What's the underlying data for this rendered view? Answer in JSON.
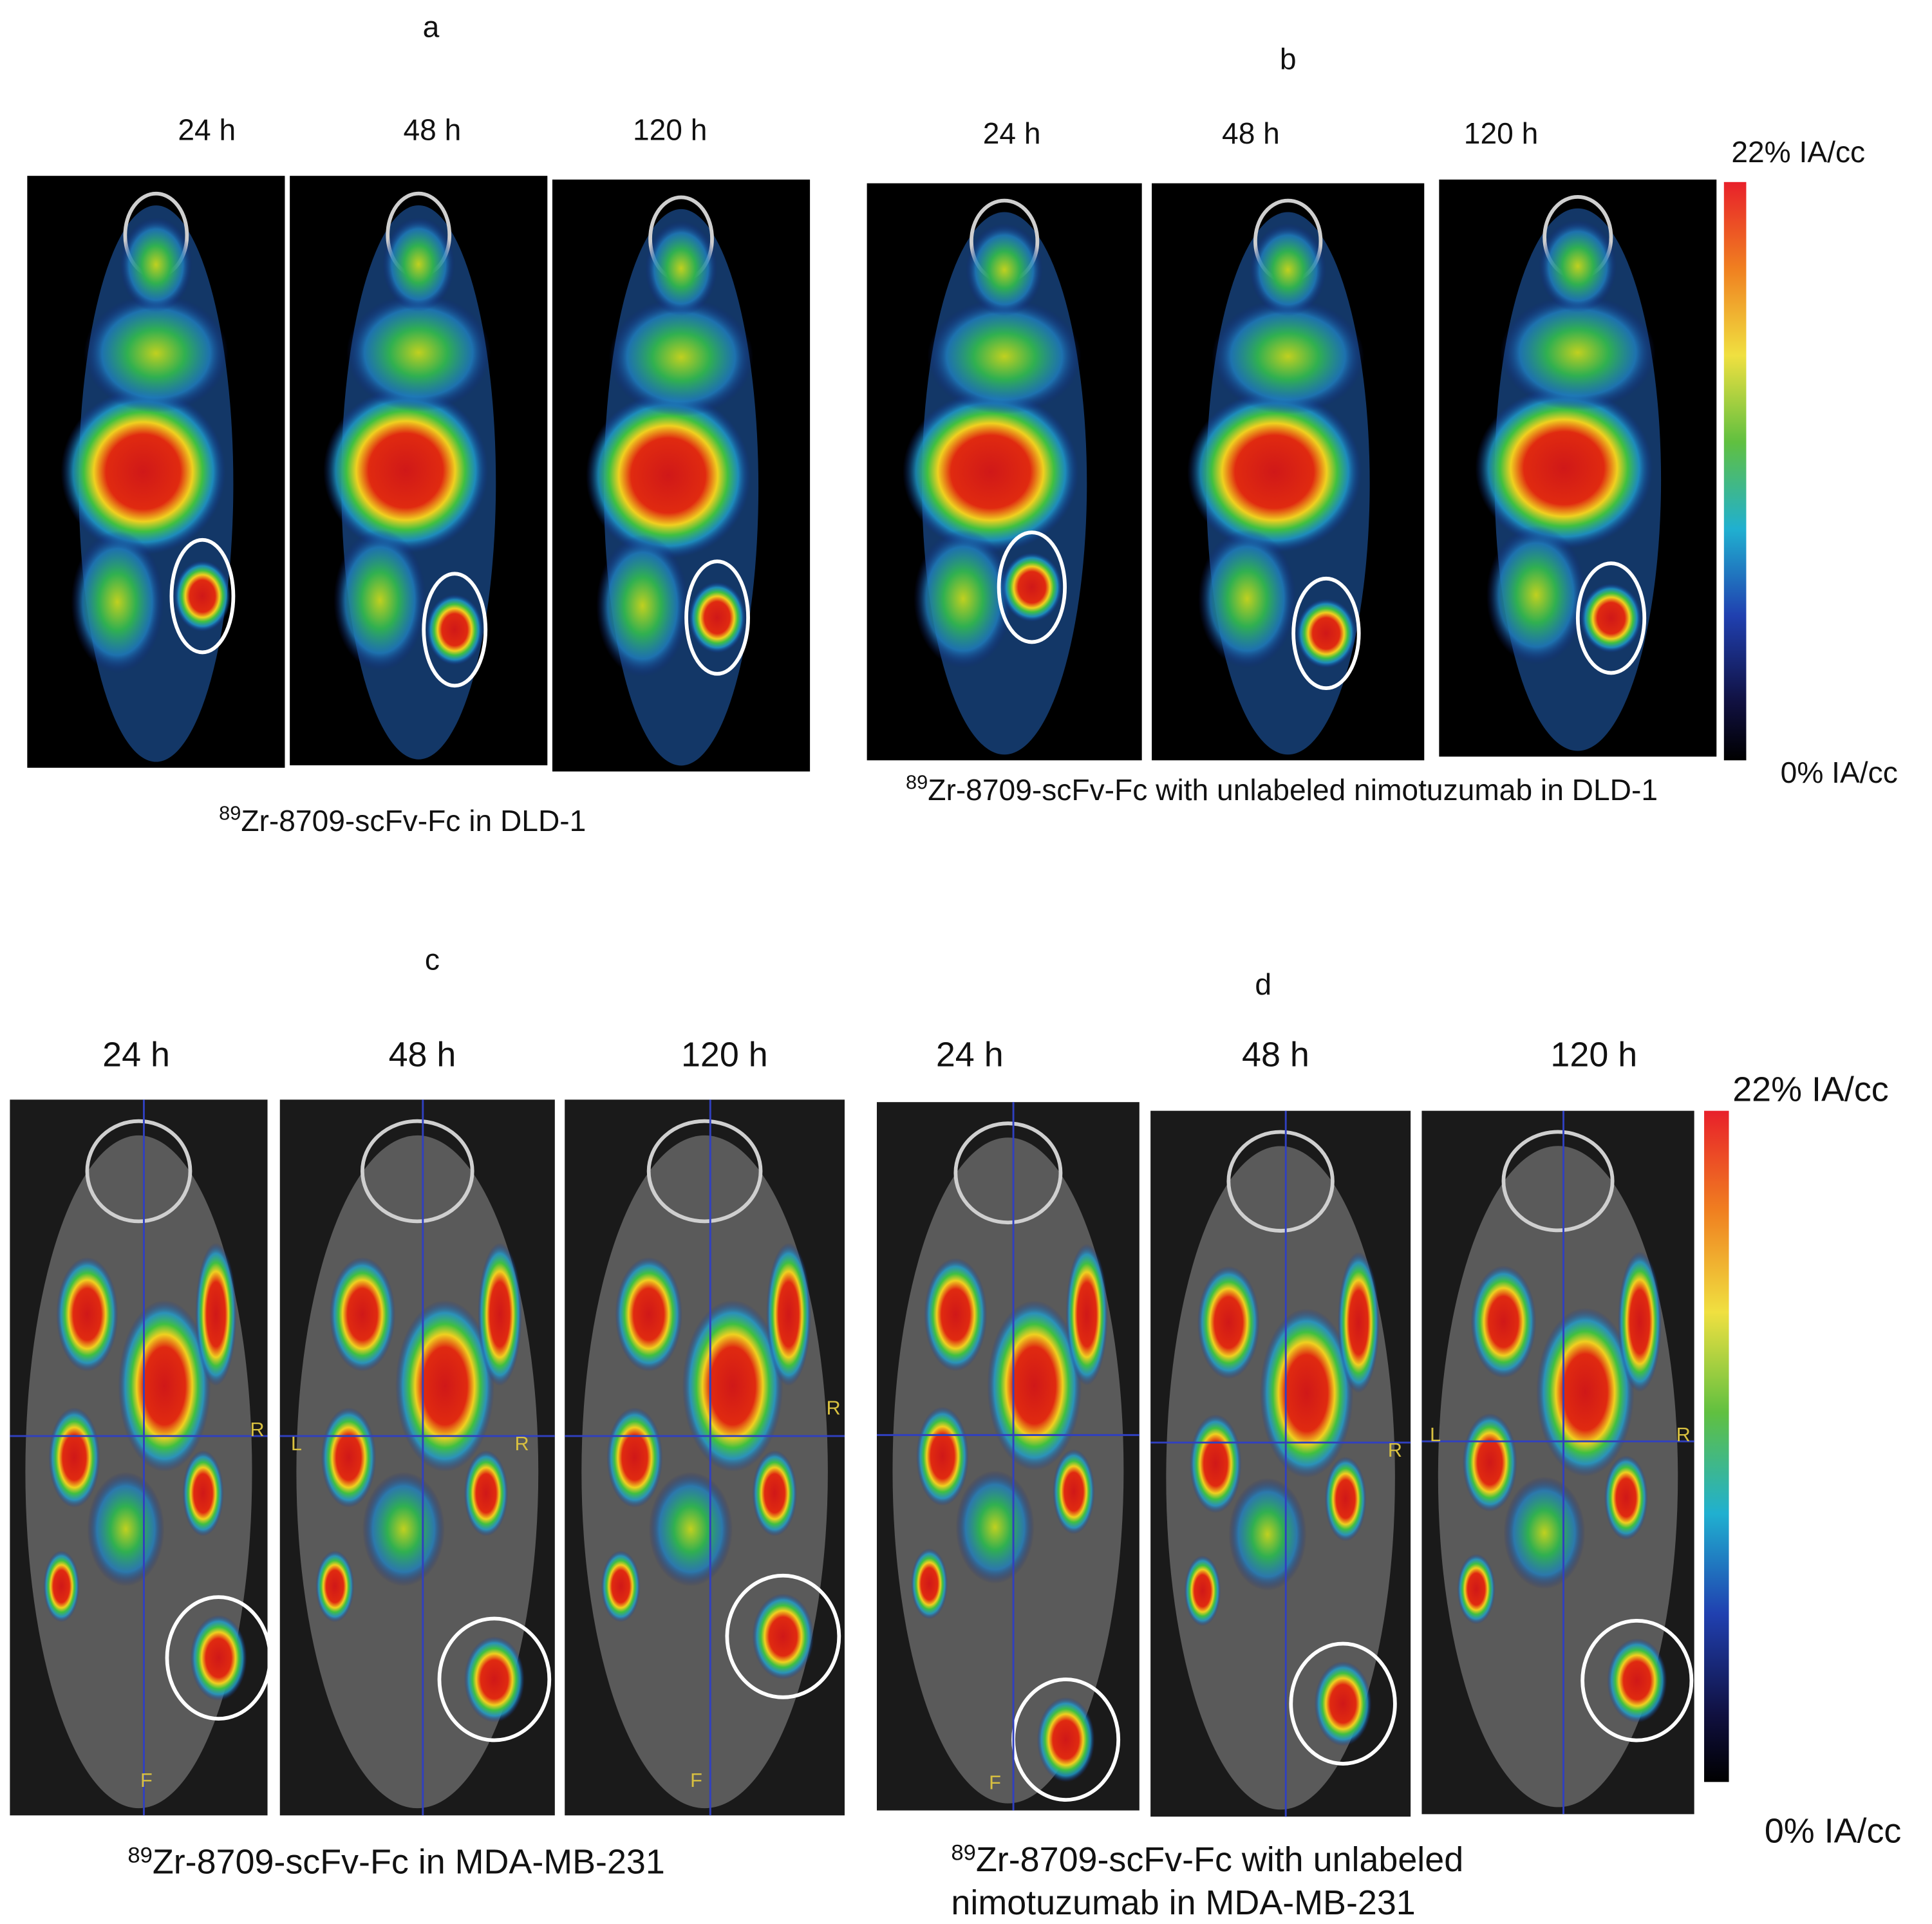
{
  "panels": [
    {
      "letter": "a",
      "times": [
        "24 h",
        "48 h",
        "120 h"
      ],
      "caption": [
        {
          "isotope": "89",
          "text": "Zr-8709-scFv-Fc in DLD-1"
        }
      ]
    },
    {
      "letter": "b",
      "times": [
        "24 h",
        "48 h",
        "120 h"
      ],
      "caption": [
        {
          "isotope": "89",
          "text": "Zr-8709-scFv-Fc with unlabeled nimotuzumab in DLD-1"
        }
      ]
    },
    {
      "letter": "c",
      "times": [
        "24 h",
        "48 h",
        "120 h"
      ],
      "caption": [
        {
          "isotope": "89",
          "text": "Zr-8709-scFv-Fc in MDA-MB-231"
        }
      ],
      "markers": [
        [
          "R",
          "F"
        ],
        [
          "L",
          "R"
        ],
        [
          "R",
          "F"
        ]
      ]
    },
    {
      "letter": "d",
      "times": [
        "24 h",
        "48 h",
        "120 h"
      ],
      "caption": [
        {
          "isotope": "89",
          "text": "Zr-8709-scFv-Fc with unlabeled"
        },
        {
          "text": "nimotuzumab in MDA-MB-231"
        }
      ],
      "markers": [
        [
          "F"
        ],
        [
          "R"
        ],
        [
          "L",
          "R"
        ]
      ]
    }
  ],
  "colorbars": [
    {
      "max_label": "22% IA/cc",
      "min_label": "0% IA/cc"
    },
    {
      "max_label": "22% IA/cc",
      "min_label": "0% IA/cc"
    }
  ]
}
